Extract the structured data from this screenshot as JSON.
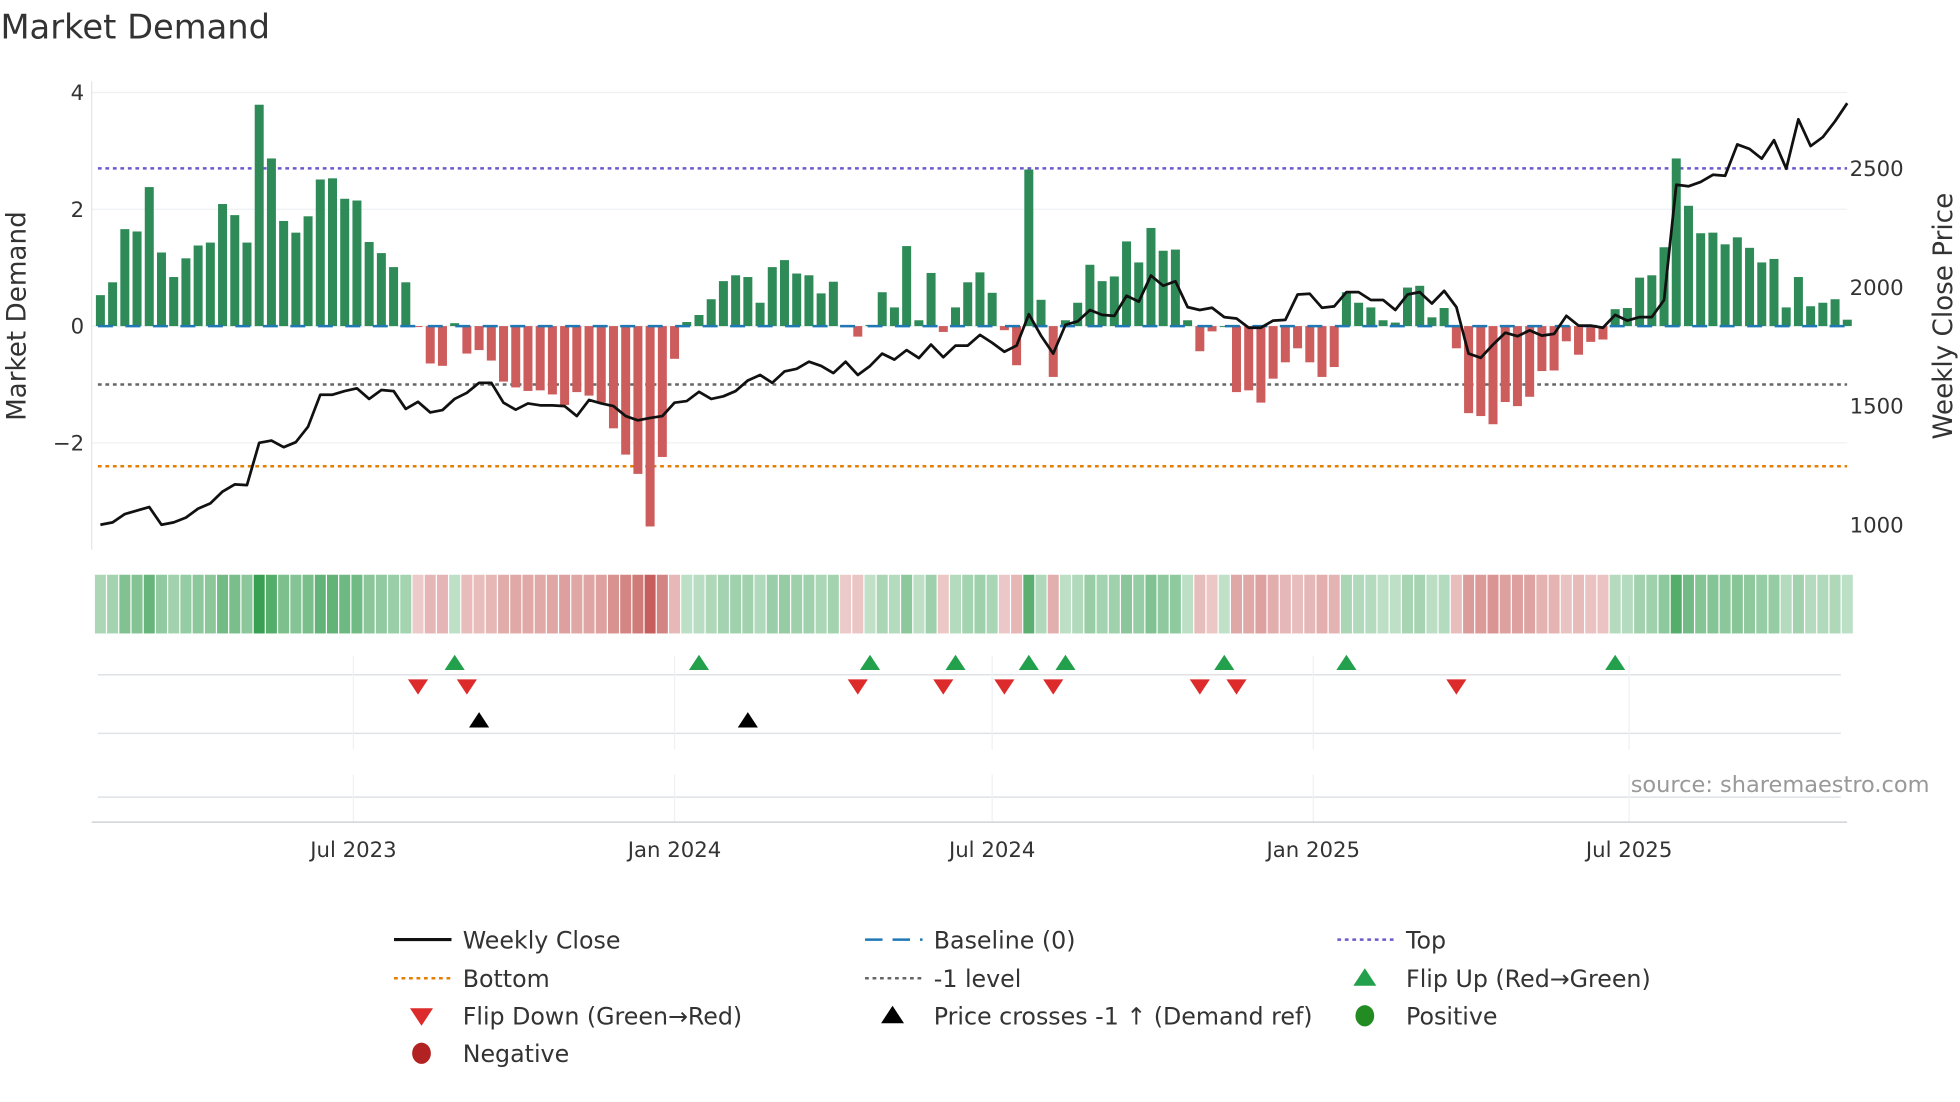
{
  "title": "Market Demand",
  "source": "source: sharemaestro.com",
  "colors": {
    "positive": "#2e8b57",
    "negative": "#cd5c5c",
    "price": "#111111",
    "baseline": "#1f77b4",
    "top": "#6a5acd",
    "bottom": "#e67e00",
    "minus1": "#666666",
    "flip_up": "#22a04b",
    "flip_down": "#dd2a2a",
    "cross": "#000000",
    "positive_dot": "#228b22",
    "negative_dot": "#b22222"
  },
  "chart_data": {
    "type": "bar",
    "title": "Market Demand",
    "ylabel": "Market Demand",
    "y2label": "Weekly Close Price",
    "ylim": [
      -3.6,
      4.2
    ],
    "y2lim": [
      950,
      2900
    ],
    "yticks": [
      4,
      2,
      0,
      -2
    ],
    "ytick_labels": [
      "4",
      "2",
      "0",
      "−2"
    ],
    "y2ticks": [
      2500,
      2000,
      1500,
      1000
    ],
    "y2tick_labels": [
      "2500",
      "2000",
      "1500",
      "1000"
    ],
    "start_date": "2023-02-06",
    "frequency": "weekly",
    "xticks": [
      {
        "date": "2023-07-01",
        "label": "Jul 2023"
      },
      {
        "date": "2024-01-01",
        "label": "Jan 2024"
      },
      {
        "date": "2024-07-01",
        "label": "Jul 2024"
      },
      {
        "date": "2025-01-01",
        "label": "Jan 2025"
      },
      {
        "date": "2025-07-01",
        "label": "Jul 2025"
      }
    ],
    "levels": {
      "baseline": 0,
      "top": 2.7,
      "minus1": -1,
      "bottom": -2.4
    },
    "demand": [
      0.53,
      0.75,
      1.66,
      1.62,
      2.38,
      1.26,
      0.84,
      1.16,
      1.38,
      1.43,
      2.09,
      1.9,
      1.43,
      3.79,
      2.87,
      1.8,
      1.6,
      1.88,
      2.51,
      2.53,
      2.18,
      2.15,
      1.44,
      1.25,
      1.01,
      0.75,
      -0.01,
      -0.64,
      -0.68,
      0.05,
      -0.47,
      -0.41,
      -0.59,
      -0.95,
      -1.05,
      -1.11,
      -1.1,
      -1.17,
      -1.35,
      -1.13,
      -1.19,
      -1.31,
      -1.75,
      -2.2,
      -2.53,
      -3.43,
      -2.24,
      -0.56,
      0.07,
      0.19,
      0.46,
      0.77,
      0.87,
      0.84,
      0.4,
      1.01,
      1.13,
      0.9,
      0.87,
      0.56,
      0.76,
      -0.01,
      -0.18,
      0.02,
      0.58,
      0.32,
      1.37,
      0.1,
      0.91,
      -0.1,
      0.32,
      0.75,
      0.92,
      0.57,
      -0.07,
      -0.67,
      2.68,
      0.45,
      -0.87,
      0.1,
      0.4,
      1.05,
      0.77,
      0.85,
      1.45,
      1.09,
      1.68,
      1.29,
      1.31,
      0.1,
      -0.43,
      -0.09,
      0.0,
      -1.13,
      -1.1,
      -1.31,
      -0.9,
      -0.62,
      -0.38,
      -0.62,
      -0.87,
      -0.7,
      0.58,
      0.4,
      0.32,
      0.1,
      0.06,
      0.66,
      0.69,
      0.15,
      0.31,
      -0.38,
      -1.49,
      -1.54,
      -1.68,
      -1.3,
      -1.37,
      -1.21,
      -0.77,
      -0.76,
      -0.26,
      -0.49,
      -0.27,
      -0.23,
      0.29,
      0.31,
      0.83,
      0.87,
      1.35,
      2.87,
      2.06,
      1.59,
      1.6,
      1.4,
      1.52,
      1.34,
      1.09,
      1.15,
      0.32,
      0.84,
      0.34,
      0.4,
      0.46,
      0.11
    ],
    "price": [
      1000,
      1010,
      1045,
      1060,
      1075,
      1000,
      1010,
      1030,
      1068,
      1090,
      1140,
      1170,
      1167,
      1345,
      1355,
      1327,
      1348,
      1413,
      1548,
      1548,
      1563,
      1575,
      1530,
      1568,
      1563,
      1488,
      1518,
      1473,
      1483,
      1530,
      1556,
      1598,
      1598,
      1514,
      1485,
      1511,
      1503,
      1503,
      1500,
      1458,
      1526,
      1511,
      1500,
      1458,
      1440,
      1450,
      1458,
      1514,
      1521,
      1560,
      1530,
      1541,
      1563,
      1608,
      1631,
      1598,
      1646,
      1657,
      1687,
      1669,
      1639,
      1687,
      1631,
      1669,
      1721,
      1696,
      1736,
      1702,
      1759,
      1706,
      1755,
      1755,
      1800,
      1767,
      1729,
      1755,
      1887,
      1797,
      1721,
      1842,
      1857,
      1905,
      1884,
      1880,
      1965,
      1940,
      2050,
      2007,
      2026,
      1917,
      1905,
      1914,
      1875,
      1869,
      1830,
      1830,
      1860,
      1863,
      1970,
      1973,
      1914,
      1920,
      1980,
      1980,
      1947,
      1947,
      1905,
      1970,
      1980,
      1932,
      1985,
      1917,
      1721,
      1703,
      1759,
      1809,
      1794,
      1819,
      1797,
      1804,
      1880,
      1839,
      1839,
      1830,
      1884,
      1860,
      1875,
      1875,
      1947,
      2432,
      2426,
      2444,
      2474,
      2470,
      2602,
      2583,
      2542,
      2620,
      2500,
      2708,
      2595,
      2633,
      2700,
      2776
    ],
    "flip_up_weeks": [
      29,
      49,
      63,
      70,
      76,
      79,
      92,
      102,
      124
    ],
    "flip_down_weeks": [
      26,
      30,
      62,
      69,
      74,
      78,
      90,
      93,
      111
    ],
    "price_cross_weeks": [
      31,
      53
    ]
  },
  "legend": [
    {
      "label": "Weekly Close",
      "kind": "line-solid",
      "color": "#111111"
    },
    {
      "label": "Baseline (0)",
      "kind": "line-dash",
      "color": "#1f77b4"
    },
    {
      "label": "Top",
      "kind": "line-dot",
      "color": "#6a5acd"
    },
    {
      "label": "Bottom",
      "kind": "line-dot",
      "color": "#e67e00"
    },
    {
      "label": "-1 level",
      "kind": "line-dot",
      "color": "#666666"
    },
    {
      "label": "Flip Up (Red→Green)",
      "kind": "tri-up",
      "color": "#22a04b"
    },
    {
      "label": "Flip Down (Green→Red)",
      "kind": "tri-down",
      "color": "#dd2a2a"
    },
    {
      "label": "Price crosses -1 ↑ (Demand ref)",
      "kind": "tri-up",
      "color": "#000000"
    },
    {
      "label": "Positive",
      "kind": "dot",
      "color": "#228b22"
    },
    {
      "label": "Negative",
      "kind": "dot",
      "color": "#b22222"
    }
  ]
}
